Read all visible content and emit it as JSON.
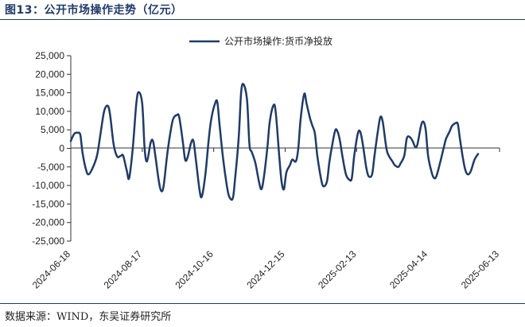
{
  "figure": {
    "title": "图13：公开市场操作走势（亿元）",
    "source": "数据来源：WIND，东吴证券研究所"
  },
  "colors": {
    "series": "#1f3b68",
    "axis": "#333333",
    "title": "#1f3b68"
  },
  "chart_data": {
    "type": "line",
    "title": "图13：公开市场操作走势（亿元）",
    "xlabel": "",
    "ylabel": "",
    "ylim": [
      -25000,
      25000
    ],
    "yticks": [
      25000,
      20000,
      15000,
      10000,
      5000,
      0,
      -5000,
      -10000,
      -15000,
      -20000,
      -25000
    ],
    "ytick_labels": [
      "25,000",
      "20,000",
      "15,000",
      "10,000",
      "5,000",
      "0",
      "-5,000",
      "-10,000",
      "-15,000",
      "-20,000",
      "-25,000"
    ],
    "xlim": [
      "2024-06-18",
      "2025-06-13"
    ],
    "xticks": [
      "2024-06-18",
      "2024-08-17",
      "2024-10-16",
      "2024-12-15",
      "2025-02-13",
      "2025-04-14",
      "2025-06-13"
    ],
    "grid": false,
    "legend_position": "top-center",
    "series": [
      {
        "name": "公开市场操作:货币净投放",
        "color": "#1f3b68",
        "points": [
          [
            "2024-06-18",
            2000
          ],
          [
            "2024-06-21",
            4000
          ],
          [
            "2024-06-24",
            4200
          ],
          [
            "2024-06-26",
            3600
          ],
          [
            "2024-06-28",
            -1500
          ],
          [
            "2024-07-01",
            -6000
          ],
          [
            "2024-07-03",
            -7000
          ],
          [
            "2024-07-06",
            -5500
          ],
          [
            "2024-07-10",
            -2000
          ],
          [
            "2024-07-13",
            4000
          ],
          [
            "2024-07-16",
            10000
          ],
          [
            "2024-07-19",
            11500
          ],
          [
            "2024-07-21",
            9000
          ],
          [
            "2024-07-24",
            1000
          ],
          [
            "2024-07-27",
            -2200
          ],
          [
            "2024-07-30",
            -2000
          ],
          [
            "2024-08-01",
            -2000
          ],
          [
            "2024-08-04",
            -6000
          ],
          [
            "2024-08-06",
            -8000
          ],
          [
            "2024-08-09",
            0
          ],
          [
            "2024-08-12",
            12000
          ],
          [
            "2024-08-14",
            15200
          ],
          [
            "2024-08-17",
            12000
          ],
          [
            "2024-08-19",
            0
          ],
          [
            "2024-08-21",
            -3500
          ],
          [
            "2024-08-24",
            1500
          ],
          [
            "2024-08-26",
            2000
          ],
          [
            "2024-08-28",
            -2000
          ],
          [
            "2024-08-31",
            -9000
          ],
          [
            "2024-09-02",
            -11500
          ],
          [
            "2024-09-04",
            -10000
          ],
          [
            "2024-09-07",
            -1500
          ],
          [
            "2024-09-10",
            5000
          ],
          [
            "2024-09-12",
            8000
          ],
          [
            "2024-09-15",
            9000
          ],
          [
            "2024-09-17",
            8500
          ],
          [
            "2024-09-20",
            2000
          ],
          [
            "2024-09-22",
            -3000
          ],
          [
            "2024-09-24",
            -2500
          ],
          [
            "2024-09-27",
            1500
          ],
          [
            "2024-09-29",
            2000
          ],
          [
            "2024-10-01",
            -3000
          ],
          [
            "2024-10-04",
            -11000
          ],
          [
            "2024-10-06",
            -13000
          ],
          [
            "2024-10-09",
            -7000
          ],
          [
            "2024-10-12",
            3000
          ],
          [
            "2024-10-14",
            8000
          ],
          [
            "2024-10-17",
            12000
          ],
          [
            "2024-10-19",
            12500
          ],
          [
            "2024-10-21",
            6000
          ],
          [
            "2024-10-24",
            -3000
          ],
          [
            "2024-10-27",
            -10000
          ],
          [
            "2024-10-29",
            -13000
          ],
          [
            "2024-11-01",
            -13500
          ],
          [
            "2024-11-03",
            -8000
          ],
          [
            "2024-11-06",
            3000
          ],
          [
            "2024-11-08",
            15000
          ],
          [
            "2024-11-10",
            17300
          ],
          [
            "2024-11-13",
            13000
          ],
          [
            "2024-11-15",
            1000
          ],
          [
            "2024-11-17",
            -1000
          ],
          [
            "2024-11-20",
            -4000
          ],
          [
            "2024-11-23",
            -9000
          ],
          [
            "2024-11-25",
            -11000
          ],
          [
            "2024-11-27",
            -8000
          ],
          [
            "2024-11-30",
            0
          ],
          [
            "2024-12-02",
            7000
          ],
          [
            "2024-12-05",
            11500
          ],
          [
            "2024-12-07",
            10000
          ],
          [
            "2024-12-10",
            -2000
          ],
          [
            "2024-12-12",
            -9000
          ],
          [
            "2024-12-14",
            -11000
          ],
          [
            "2024-12-16",
            -6500
          ],
          [
            "2024-12-19",
            -4500
          ],
          [
            "2024-12-21",
            -3000
          ],
          [
            "2024-12-24",
            -3500
          ],
          [
            "2024-12-26",
            0
          ],
          [
            "2024-12-28",
            8000
          ],
          [
            "2024-12-31",
            14700
          ],
          [
            "2025-01-02",
            12000
          ],
          [
            "2025-01-05",
            8000
          ],
          [
            "2025-01-07",
            6000
          ],
          [
            "2025-01-09",
            4000
          ],
          [
            "2025-01-11",
            -2000
          ],
          [
            "2025-01-14",
            -8000
          ],
          [
            "2025-01-16",
            -10200
          ],
          [
            "2025-01-19",
            -9000
          ],
          [
            "2025-01-21",
            -4000
          ],
          [
            "2025-01-23",
            0
          ],
          [
            "2025-01-26",
            4800
          ],
          [
            "2025-01-28",
            4500
          ],
          [
            "2025-01-30",
            2000
          ],
          [
            "2025-02-01",
            -2000
          ],
          [
            "2025-02-04",
            -7000
          ],
          [
            "2025-02-07",
            -8500
          ],
          [
            "2025-02-09",
            -8000
          ],
          [
            "2025-02-11",
            -2000
          ],
          [
            "2025-02-14",
            4000
          ],
          [
            "2025-02-16",
            4500
          ],
          [
            "2025-02-18",
            1500
          ],
          [
            "2025-02-21",
            -5000
          ],
          [
            "2025-02-23",
            -7500
          ],
          [
            "2025-02-26",
            -7000
          ],
          [
            "2025-02-28",
            -2000
          ],
          [
            "2025-03-03",
            5000
          ],
          [
            "2025-03-05",
            8500
          ],
          [
            "2025-03-07",
            7000
          ],
          [
            "2025-03-10",
            0
          ],
          [
            "2025-03-12",
            -2000
          ],
          [
            "2025-03-15",
            -3500
          ],
          [
            "2025-03-17",
            -4500
          ],
          [
            "2025-03-20",
            -5000
          ],
          [
            "2025-03-22",
            -4000
          ],
          [
            "2025-03-25",
            -2000
          ],
          [
            "2025-03-27",
            2500
          ],
          [
            "2025-03-29",
            3200
          ],
          [
            "2025-04-01",
            2000
          ],
          [
            "2025-04-03",
            500
          ],
          [
            "2025-04-05",
            1000
          ],
          [
            "2025-04-08",
            6000
          ],
          [
            "2025-04-10",
            7200
          ],
          [
            "2025-04-12",
            5000
          ],
          [
            "2025-04-14",
            -2000
          ],
          [
            "2025-04-17",
            -6500
          ],
          [
            "2025-04-19",
            -8000
          ],
          [
            "2025-04-21",
            -7500
          ],
          [
            "2025-04-24",
            -4000
          ],
          [
            "2025-04-27",
            0
          ],
          [
            "2025-04-29",
            2500
          ],
          [
            "2025-05-02",
            4500
          ],
          [
            "2025-05-04",
            6000
          ],
          [
            "2025-05-07",
            6800
          ],
          [
            "2025-05-09",
            6500
          ],
          [
            "2025-05-11",
            2000
          ],
          [
            "2025-05-14",
            -4000
          ],
          [
            "2025-05-16",
            -6500
          ],
          [
            "2025-05-18",
            -7000
          ],
          [
            "2025-05-20",
            -6000
          ],
          [
            "2025-05-23",
            -3000
          ],
          [
            "2025-05-26",
            -1500
          ]
        ]
      }
    ]
  }
}
